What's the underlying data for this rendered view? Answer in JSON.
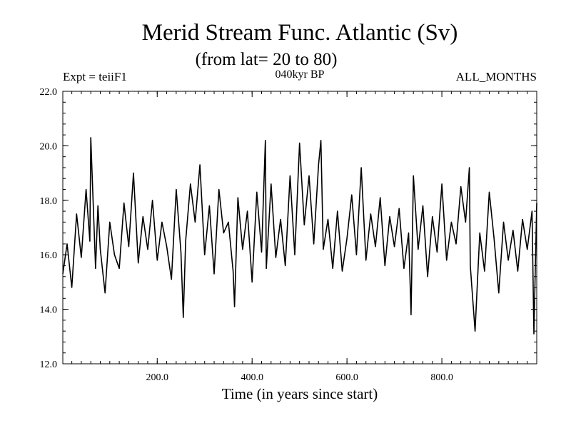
{
  "chart_data": {
    "type": "line",
    "title": "Merid Stream Func. Atlantic (Sv)",
    "subtitle": "(from lat= 20 to 80)",
    "annotations": {
      "experiment": "Expt = teiiF1",
      "period": "040kyr BP",
      "months": "ALL_MONTHS"
    },
    "xlabel": "Time (in years since start)",
    "ylabel": "",
    "xlim": [
      1,
      1000
    ],
    "ylim": [
      12.0,
      22.0
    ],
    "xticks": [
      200,
      400,
      600,
      800
    ],
    "xtick_labels": [
      "200.0",
      "400.0",
      "600.0",
      "800.0"
    ],
    "yticks": [
      12,
      14,
      16,
      18,
      20,
      22
    ],
    "ytick_labels": [
      "12.0",
      "14.0",
      "16.0",
      "18.0",
      "20.0",
      "22.0"
    ],
    "grid": false,
    "series": [
      {
        "x": [
          1,
          10,
          20,
          30,
          40,
          50,
          58,
          60,
          70,
          75,
          80,
          90,
          100,
          110,
          120,
          130,
          140,
          150,
          160,
          170,
          180,
          190,
          200,
          210,
          220,
          230,
          240,
          250,
          255,
          260,
          270,
          280,
          290,
          300,
          310,
          320,
          330,
          340,
          350,
          360,
          363,
          370,
          380,
          390,
          400,
          410,
          420,
          428,
          430,
          440,
          450,
          460,
          470,
          480,
          490,
          500,
          510,
          520,
          530,
          540,
          545,
          550,
          560,
          570,
          580,
          590,
          600,
          610,
          620,
          630,
          640,
          650,
          660,
          670,
          680,
          690,
          700,
          710,
          720,
          730,
          735,
          740,
          750,
          760,
          770,
          780,
          790,
          800,
          810,
          820,
          830,
          840,
          850,
          858,
          860,
          870,
          880,
          890,
          900,
          910,
          920,
          930,
          940,
          950,
          960,
          970,
          980,
          990,
          994,
          1000
        ],
        "values": [
          15.3,
          16.4,
          14.8,
          17.5,
          15.9,
          18.4,
          16.5,
          20.3,
          15.5,
          17.8,
          16.2,
          14.6,
          17.2,
          16.0,
          15.5,
          17.9,
          16.3,
          19.0,
          15.7,
          17.4,
          16.2,
          18.0,
          15.8,
          17.2,
          16.3,
          15.1,
          18.4,
          16.1,
          13.7,
          16.5,
          18.6,
          17.2,
          19.3,
          16.0,
          17.8,
          15.3,
          18.4,
          16.8,
          17.2,
          15.4,
          14.1,
          18.1,
          16.2,
          17.6,
          15.0,
          18.3,
          16.1,
          20.2,
          15.5,
          18.6,
          15.9,
          17.3,
          15.6,
          18.9,
          16.0,
          20.1,
          17.1,
          18.9,
          16.4,
          19.3,
          20.2,
          16.2,
          17.3,
          15.5,
          17.6,
          15.4,
          16.6,
          18.2,
          16.0,
          19.2,
          15.8,
          17.5,
          16.3,
          18.1,
          15.6,
          17.4,
          16.3,
          17.7,
          15.5,
          16.8,
          13.8,
          18.9,
          16.2,
          17.8,
          15.2,
          17.4,
          16.1,
          18.6,
          15.8,
          17.2,
          16.4,
          18.5,
          17.2,
          19.2,
          15.6,
          13.2,
          16.8,
          15.4,
          18.3,
          16.6,
          14.6,
          17.2,
          15.8,
          16.9,
          15.4,
          17.3,
          16.2,
          17.6,
          13.1,
          17.9
        ]
      }
    ]
  }
}
